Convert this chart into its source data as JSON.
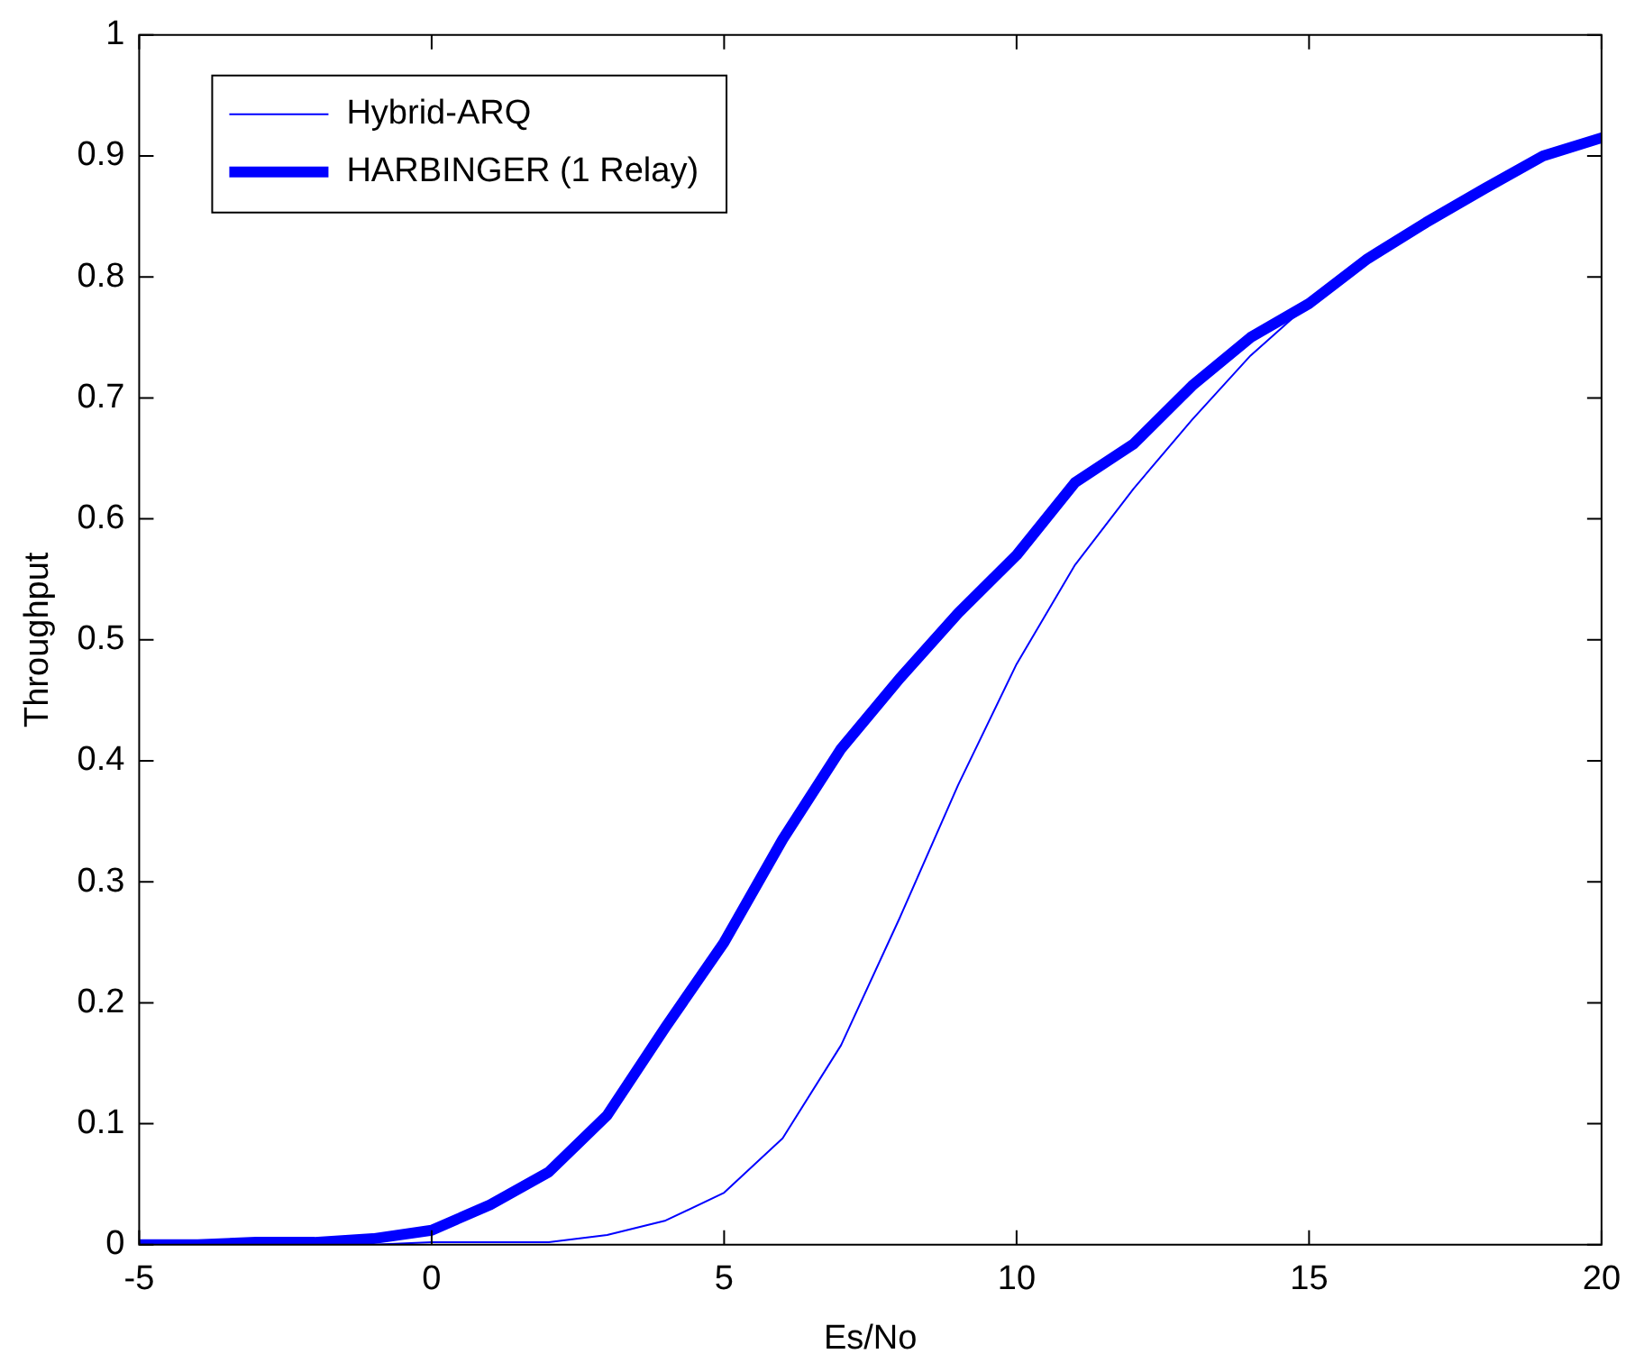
{
  "chart_data": {
    "type": "line",
    "xlabel": "Es/No",
    "ylabel": "Throughput",
    "x": [
      -5,
      -4,
      -3,
      -2,
      -1,
      0,
      1,
      2,
      3,
      4,
      5,
      6,
      7,
      8,
      9,
      10,
      11,
      12,
      13,
      14,
      15,
      16,
      17,
      18,
      19,
      20
    ],
    "series": [
      {
        "name": "Hybrid-ARQ",
        "color": "#0000ff",
        "values": [
          0,
          0,
          0,
          0,
          0,
          0.002,
          0.002,
          0.002,
          0.008,
          0.02,
          0.043,
          0.088,
          0.165,
          0.27,
          0.38,
          0.48,
          0.562,
          0.625,
          0.682,
          0.735,
          0.778,
          0.815,
          0.845,
          0.873,
          0.9,
          0.915
        ]
      },
      {
        "name": "HARBINGER (1 Relay)",
        "color": "#0000ff",
        "values": [
          0,
          0,
          0.002,
          0.002,
          0.005,
          0.012,
          0.033,
          0.06,
          0.107,
          0.18,
          0.25,
          0.335,
          0.41,
          0.468,
          0.522,
          0.57,
          0.63,
          0.662,
          0.71,
          0.75,
          0.778,
          0.815,
          0.845,
          0.873,
          0.9,
          0.915
        ]
      }
    ],
    "xlim": [
      -5,
      20
    ],
    "xticks": [
      -5,
      0,
      5,
      10,
      15,
      20
    ],
    "ylim": [
      0,
      1
    ],
    "yticks": [
      0,
      0.1,
      0.2,
      0.3,
      0.4,
      0.5,
      0.6,
      0.7,
      0.8,
      0.9,
      1
    ],
    "grid": false,
    "legend": "top left",
    "marker": "none",
    "line_style": "solid"
  }
}
